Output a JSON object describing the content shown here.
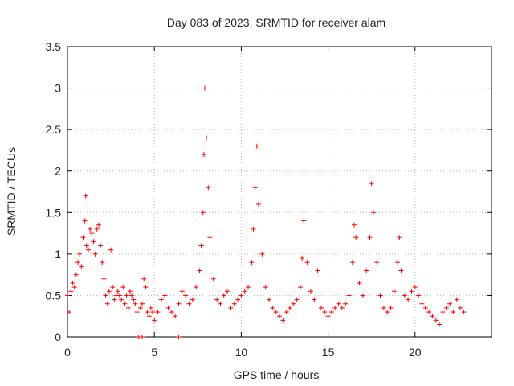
{
  "chart_data": {
    "type": "scatter",
    "title": "Day 083 of 2023, SRMTID for receiver alam",
    "xlabel": "GPS time / hours",
    "ylabel": "SRMTID / TECUs",
    "xlim": [
      0,
      24.4
    ],
    "ylim": [
      0,
      3.5
    ],
    "xticks": [
      0,
      5,
      10,
      15,
      20
    ],
    "xtick_labels": [
      "0",
      "5",
      "10",
      "15",
      "20"
    ],
    "yticks": [
      0,
      0.5,
      1,
      1.5,
      2,
      2.5,
      3,
      3.5
    ],
    "ytick_labels": [
      "0",
      "0.5",
      "1",
      "1.5",
      "2",
      "2.5",
      "3",
      "3.5"
    ],
    "grid": true,
    "marker": "+",
    "series": [
      {
        "name": "SRMTID",
        "color": "#ff0000",
        "x": [
          0.0,
          0.1,
          0.2,
          0.3,
          0.4,
          0.5,
          0.6,
          0.7,
          0.8,
          0.9,
          1.0,
          1.05,
          1.1,
          1.2,
          1.3,
          1.4,
          1.5,
          1.6,
          1.7,
          1.8,
          1.9,
          2.0,
          2.1,
          2.2,
          2.3,
          2.4,
          2.5,
          2.6,
          2.7,
          2.8,
          2.9,
          3.0,
          3.1,
          3.2,
          3.3,
          3.4,
          3.5,
          3.6,
          3.7,
          3.8,
          3.9,
          4.0,
          4.2,
          4.3,
          4.4,
          4.5,
          4.6,
          4.7,
          4.8,
          4.9,
          5.0,
          5.2,
          5.4,
          5.6,
          5.8,
          6.0,
          6.2,
          6.4,
          6.6,
          6.8,
          7.0,
          7.2,
          7.4,
          7.6,
          7.7,
          7.8,
          7.85,
          7.9,
          8.0,
          8.1,
          8.2,
          8.4,
          8.6,
          8.8,
          9.0,
          9.2,
          9.4,
          9.6,
          9.8,
          10.0,
          10.2,
          10.4,
          10.6,
          10.7,
          10.8,
          10.9,
          11.0,
          11.2,
          11.4,
          11.6,
          11.8,
          12.0,
          12.2,
          12.4,
          12.6,
          12.8,
          13.0,
          13.2,
          13.4,
          13.5,
          13.6,
          13.8,
          14.0,
          14.2,
          14.4,
          14.6,
          14.8,
          15.0,
          15.2,
          15.4,
          15.6,
          15.8,
          16.0,
          16.2,
          16.4,
          16.5,
          16.6,
          16.8,
          17.0,
          17.2,
          17.4,
          17.5,
          17.6,
          17.8,
          18.0,
          18.2,
          18.4,
          18.6,
          18.8,
          19.0,
          19.1,
          19.2,
          19.4,
          19.6,
          19.8,
          20.0,
          20.2,
          20.4,
          20.6,
          20.8,
          21.0,
          21.2,
          21.4,
          21.6,
          21.8,
          22.0,
          22.2,
          22.4,
          22.6,
          22.8
        ],
        "y": [
          0.5,
          0.3,
          0.55,
          0.65,
          0.6,
          0.75,
          0.9,
          1.0,
          0.85,
          1.2,
          1.4,
          1.7,
          1.1,
          1.05,
          1.3,
          1.25,
          1.15,
          1.0,
          1.3,
          1.35,
          1.1,
          0.9,
          0.7,
          0.5,
          0.4,
          0.55,
          1.05,
          0.6,
          0.45,
          0.5,
          0.55,
          0.5,
          0.45,
          0.6,
          0.4,
          0.5,
          0.35,
          0.55,
          0.5,
          0.45,
          0.4,
          0.3,
          0.35,
          0.4,
          0.7,
          0.6,
          0.3,
          0.25,
          0.35,
          0.3,
          0.2,
          0.3,
          0.45,
          0.5,
          0.35,
          0.3,
          0.25,
          0.4,
          0.55,
          0.5,
          0.4,
          0.45,
          0.6,
          0.8,
          1.1,
          1.5,
          2.2,
          3.0,
          2.4,
          1.8,
          1.2,
          0.7,
          0.45,
          0.4,
          0.5,
          0.55,
          0.35,
          0.4,
          0.45,
          0.5,
          0.55,
          0.6,
          0.9,
          1.3,
          1.8,
          2.3,
          1.6,
          1.0,
          0.6,
          0.45,
          0.35,
          0.3,
          0.25,
          0.2,
          0.3,
          0.35,
          0.4,
          0.45,
          0.6,
          0.95,
          1.4,
          0.9,
          0.55,
          0.45,
          0.8,
          0.35,
          0.3,
          0.25,
          0.3,
          0.35,
          0.4,
          0.35,
          0.4,
          0.5,
          0.9,
          1.35,
          1.2,
          0.65,
          0.5,
          0.8,
          1.2,
          1.85,
          1.5,
          0.9,
          0.5,
          0.35,
          0.3,
          0.35,
          0.55,
          0.9,
          1.2,
          0.8,
          0.5,
          0.45,
          0.55,
          0.6,
          0.5,
          0.4,
          0.35,
          0.3,
          0.25,
          0.2,
          0.15,
          0.3,
          0.35,
          0.4,
          0.3,
          0.45,
          0.35,
          0.3
        ]
      }
    ],
    "zero_points_x": [
      4.1,
      4.3,
      6.4
    ]
  }
}
